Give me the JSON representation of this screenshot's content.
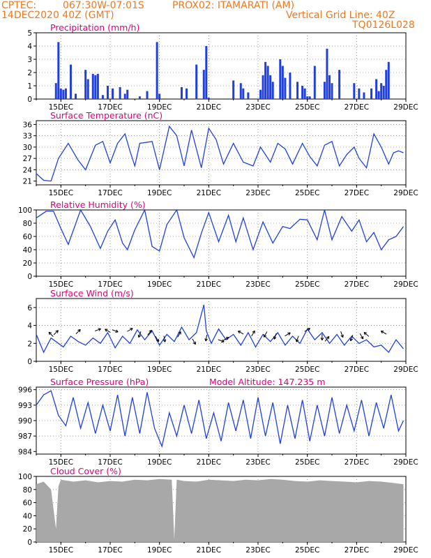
{
  "header": {
    "line1_left": "CPTEC:",
    "line1_coords": "067:30W-07:01S",
    "line1_station": "PROX02: ITAMARATI (AM)",
    "line2_left": "14DEC2020 40Z (GMT)",
    "line2_right": "Vertical Grid Line: 40Z",
    "line3_right": "TQ0126L028"
  },
  "colors": {
    "header": "#f07820",
    "panel_title": "#e0007a",
    "series": "#1f3fe0",
    "precip_bar": "#1f3fe0",
    "arrow": "#000000",
    "cloud": "#a8a8a8",
    "grid": "#888888"
  },
  "x_axis": {
    "labels": [
      "15DEC",
      "17DEC",
      "19DEC",
      "21DEC",
      "23DEC",
      "25DEC",
      "27DEC",
      "29DEC"
    ]
  },
  "chart_data": [
    {
      "type": "bar",
      "title": "Precipitation (mm/h)",
      "ylim": [
        0,
        5
      ],
      "yticks": [
        0,
        1,
        2,
        3,
        4,
        5
      ],
      "grid": true,
      "x_days": [
        0.8,
        0.9,
        1.0,
        1.1,
        1.2,
        1.4,
        1.6,
        2.0,
        2.1,
        2.3,
        2.4,
        2.5,
        2.7,
        2.9,
        3.1,
        3.4,
        3.6,
        3.7,
        4.2,
        4.5,
        4.9,
        5.0,
        5.9,
        6.1,
        6.5,
        6.8,
        6.9,
        7.0,
        8.0,
        8.3,
        8.4,
        8.6,
        9.1,
        9.2,
        9.3,
        9.4,
        9.5,
        9.6,
        9.9,
        10.0,
        10.1,
        10.3,
        10.6,
        10.8,
        10.9,
        11.0,
        11.1,
        11.3,
        11.7,
        11.8,
        11.9,
        12.0,
        12.3,
        12.9,
        13.1,
        13.3,
        13.6,
        13.8,
        13.9,
        14.0,
        14.1,
        14.2,
        14.3
      ],
      "values": [
        1.2,
        4.3,
        0.8,
        0.7,
        0.8,
        2.6,
        0.4,
        2.2,
        1.5,
        1.9,
        1.8,
        1.9,
        0.3,
        1.0,
        0.8,
        0.9,
        0.4,
        0.7,
        0.2,
        0.6,
        4.3,
        0.4,
        0.9,
        0.8,
        2.6,
        2.2,
        4.0,
        0.1,
        1.4,
        1.2,
        0.8,
        0.5,
        0.7,
        1.8,
        2.8,
        2.5,
        1.8,
        1.3,
        3.0,
        2.5,
        1.6,
        2.0,
        1.3,
        1.0,
        0.8,
        0.2,
        0.2,
        2.5,
        1.3,
        3.8,
        1.8,
        1.2,
        2.2,
        1.2,
        0.8,
        0.5,
        0.8,
        1.5,
        0.6,
        1.2,
        1.0,
        2.2,
        2.8
      ]
    },
    {
      "type": "line",
      "title": "Surface Temperature (nC)",
      "ylim": [
        20,
        37
      ],
      "yticks": [
        21,
        24,
        27,
        30,
        33,
        36
      ],
      "grid": true,
      "x": [
        0.0,
        0.3,
        0.6,
        0.9,
        1.3,
        1.7,
        2.0,
        2.4,
        2.7,
        3.0,
        3.3,
        3.6,
        3.8,
        4.0,
        4.2,
        4.7,
        5.0,
        5.4,
        5.7,
        6.0,
        6.3,
        6.7,
        7.0,
        7.3,
        7.6,
        8.0,
        8.4,
        8.8,
        9.1,
        9.5,
        9.8,
        10.1,
        10.4,
        10.8,
        11.1,
        11.4,
        11.7,
        12.0,
        12.3,
        12.6,
        12.9,
        13.1,
        13.4,
        13.7,
        14.0,
        14.3,
        14.5,
        14.7,
        14.9
      ],
      "values": [
        23.0,
        21.2,
        21.0,
        27.0,
        31.0,
        26.5,
        24.0,
        30.5,
        31.5,
        25.8,
        31.0,
        33.5,
        29.0,
        25.0,
        31.0,
        31.5,
        24.0,
        35.5,
        33.0,
        25.0,
        34.5,
        24.5,
        35.0,
        32.0,
        25.5,
        31.0,
        26.0,
        25.0,
        30.0,
        26.0,
        31.0,
        29.5,
        25.5,
        31.0,
        27.5,
        25.0,
        30.5,
        31.5,
        25.0,
        28.0,
        30.0,
        27.0,
        24.5,
        33.5,
        30.0,
        25.5,
        28.5,
        29.0,
        28.5
      ]
    },
    {
      "type": "line",
      "title": "Relative Humidity (%)",
      "ylim": [
        0,
        100
      ],
      "yticks": [
        0,
        20,
        40,
        60,
        80,
        100
      ],
      "grid": true,
      "x": [
        0.0,
        0.4,
        0.7,
        1.0,
        1.3,
        1.8,
        2.2,
        2.6,
        2.9,
        3.2,
        3.5,
        3.7,
        4.0,
        4.4,
        4.7,
        5.0,
        5.3,
        5.7,
        6.0,
        6.4,
        6.7,
        7.0,
        7.4,
        7.8,
        8.1,
        8.4,
        8.8,
        9.2,
        9.6,
        10.0,
        10.3,
        10.7,
        11.0,
        11.4,
        11.7,
        12.0,
        12.4,
        12.8,
        13.1,
        13.4,
        13.7,
        14.0,
        14.3,
        14.6,
        14.9
      ],
      "values": [
        88,
        98,
        98,
        72,
        48,
        100,
        75,
        42,
        68,
        85,
        50,
        40,
        70,
        100,
        45,
        38,
        78,
        100,
        58,
        28,
        65,
        96,
        52,
        92,
        52,
        88,
        40,
        82,
        50,
        75,
        72,
        86,
        85,
        55,
        100,
        55,
        90,
        68,
        85,
        52,
        66,
        40,
        55,
        60,
        75
      ]
    },
    {
      "type": "line",
      "title": "Surface Wind (m/s)",
      "ylim": [
        0,
        7
      ],
      "yticks": [
        0,
        2,
        4,
        6
      ],
      "grid": true,
      "x": [
        0.0,
        0.3,
        0.6,
        0.9,
        1.1,
        1.4,
        1.7,
        2.0,
        2.3,
        2.6,
        2.9,
        3.2,
        3.5,
        3.8,
        4.1,
        4.4,
        4.7,
        5.0,
        5.3,
        5.6,
        5.9,
        6.2,
        6.5,
        6.8,
        6.9,
        7.1,
        7.4,
        7.7,
        8.0,
        8.3,
        8.6,
        8.9,
        9.2,
        9.5,
        9.8,
        10.1,
        10.4,
        10.7,
        11.0,
        11.3,
        11.6,
        11.9,
        12.2,
        12.5,
        12.8,
        13.1,
        13.4,
        13.7,
        14.0,
        14.3,
        14.6,
        14.9
      ],
      "values": [
        3.0,
        1.0,
        2.6,
        2.0,
        1.6,
        2.8,
        2.2,
        1.8,
        2.6,
        2.0,
        3.2,
        1.5,
        2.8,
        2.0,
        3.5,
        2.4,
        3.4,
        1.8,
        3.0,
        2.2,
        3.8,
        2.4,
        3.2,
        6.3,
        3.4,
        2.0,
        3.6,
        2.4,
        3.0,
        1.8,
        3.2,
        1.6,
        3.0,
        2.2,
        3.2,
        1.8,
        2.8,
        2.0,
        3.6,
        2.4,
        3.2,
        2.0,
        3.0,
        1.8,
        2.8,
        2.0,
        2.4,
        1.6,
        1.8,
        1.0,
        2.4,
        1.4
      ]
    },
    {
      "type": "line",
      "title": "Surface Pressure (hPa)",
      "annotation": "Model Altitude: 147.235 m",
      "ylim": [
        983.5,
        996.5
      ],
      "yticks": [
        984,
        987,
        990,
        993,
        996
      ],
      "grid": true,
      "x": [
        0.0,
        0.3,
        0.6,
        0.9,
        1.2,
        1.5,
        1.8,
        2.1,
        2.4,
        2.7,
        3.0,
        3.3,
        3.6,
        3.9,
        4.2,
        4.5,
        4.8,
        5.1,
        5.4,
        5.7,
        6.0,
        6.3,
        6.6,
        6.9,
        7.2,
        7.5,
        7.8,
        8.1,
        8.4,
        8.7,
        9.0,
        9.3,
        9.6,
        9.9,
        10.2,
        10.5,
        10.8,
        11.1,
        11.4,
        11.7,
        12.0,
        12.3,
        12.6,
        12.9,
        13.2,
        13.5,
        13.8,
        14.1,
        14.4,
        14.7,
        14.9
      ],
      "values": [
        993.0,
        995.0,
        995.8,
        991.0,
        989.0,
        994.5,
        988.5,
        993.5,
        987.5,
        993.0,
        988.0,
        995.0,
        987.0,
        994.5,
        987.5,
        995.5,
        988.5,
        985.0,
        991.5,
        987.0,
        993.0,
        987.5,
        994.0,
        986.5,
        991.5,
        986.0,
        993.5,
        988.0,
        994.0,
        986.5,
        994.5,
        987.0,
        993.5,
        985.5,
        993.0,
        986.5,
        994.0,
        986.0,
        993.0,
        987.0,
        994.5,
        987.5,
        993.0,
        988.0,
        994.0,
        987.0,
        993.5,
        988.5,
        995.0,
        988.0,
        990.0
      ]
    },
    {
      "type": "area",
      "title": "Cloud Cover (%)",
      "ylim": [
        0,
        100
      ],
      "yticks": [
        0,
        20,
        40,
        60,
        80,
        100
      ],
      "grid": true,
      "x": [
        0.0,
        0.3,
        0.6,
        0.8,
        0.9,
        1.0,
        1.5,
        2.0,
        2.5,
        3.0,
        3.5,
        4.0,
        4.5,
        5.0,
        5.5,
        5.6,
        5.7,
        6.0,
        6.5,
        7.0,
        7.5,
        8.0,
        8.5,
        9.0,
        9.5,
        10.0,
        10.5,
        11.0,
        11.5,
        12.0,
        12.5,
        13.0,
        13.5,
        14.0,
        14.5,
        14.9
      ],
      "values": [
        88,
        92,
        80,
        20,
        85,
        95,
        92,
        94,
        91,
        93,
        92,
        95,
        94,
        96,
        95,
        4,
        95,
        93,
        92,
        95,
        94,
        93,
        95,
        94,
        96,
        95,
        93,
        92,
        94,
        93,
        92,
        91,
        93,
        92,
        90,
        88
      ]
    }
  ],
  "wind_arrows": [
    {
      "day": 0.6,
      "speed": 3.0,
      "dir": 315
    },
    {
      "day": 0.8,
      "speed": 3.2,
      "dir": 45
    },
    {
      "day": 1.7,
      "speed": 3.3,
      "dir": 45
    },
    {
      "day": 2.5,
      "speed": 3.5,
      "dir": 70
    },
    {
      "day": 2.9,
      "speed": 3.4,
      "dir": 300
    },
    {
      "day": 3.2,
      "speed": 3.4,
      "dir": 110
    },
    {
      "day": 3.8,
      "speed": 3.5,
      "dir": 60
    },
    {
      "day": 4.2,
      "speed": 3.0,
      "dir": 200
    },
    {
      "day": 4.6,
      "speed": 3.2,
      "dir": 40
    },
    {
      "day": 4.9,
      "speed": 2.5,
      "dir": 150
    },
    {
      "day": 5.2,
      "speed": 2.5,
      "dir": 170
    },
    {
      "day": 5.8,
      "speed": 3.0,
      "dir": 30
    },
    {
      "day": 6.4,
      "speed": 2.2,
      "dir": 150
    },
    {
      "day": 6.9,
      "speed": 2.6,
      "dir": 190
    },
    {
      "day": 7.5,
      "speed": 2.3,
      "dir": 110
    },
    {
      "day": 7.7,
      "speed": 2.5,
      "dir": 60
    },
    {
      "day": 8.3,
      "speed": 3.2,
      "dir": 300
    },
    {
      "day": 8.8,
      "speed": 3.1,
      "dir": 30
    },
    {
      "day": 9.3,
      "speed": 3.0,
      "dir": 210
    },
    {
      "day": 9.7,
      "speed": 2.8,
      "dir": 200
    },
    {
      "day": 10.2,
      "speed": 3.0,
      "dir": 60
    },
    {
      "day": 10.6,
      "speed": 2.5,
      "dir": 200
    },
    {
      "day": 11.0,
      "speed": 3.5,
      "dir": 60
    },
    {
      "day": 11.6,
      "speed": 2.7,
      "dir": 180
    },
    {
      "day": 11.8,
      "speed": 2.5,
      "dir": 40
    },
    {
      "day": 12.4,
      "speed": 3.0,
      "dir": 160
    },
    {
      "day": 12.8,
      "speed": 2.6,
      "dir": 200
    },
    {
      "day": 13.2,
      "speed": 2.8,
      "dir": 150
    },
    {
      "day": 13.4,
      "speed": 3.0,
      "dir": 310
    },
    {
      "day": 14.1,
      "speed": 3.2,
      "dir": 300
    }
  ]
}
